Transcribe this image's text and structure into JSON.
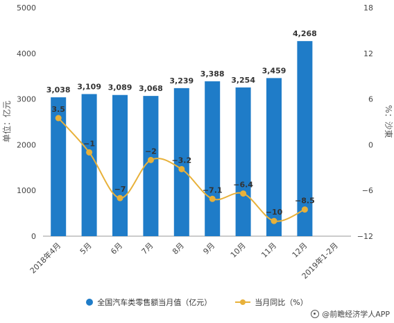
{
  "chart_data": {
    "type": "bar+line",
    "categories": [
      "2018年4月",
      "5月",
      "6月",
      "7月",
      "8月",
      "9月",
      "10月",
      "11月",
      "12月",
      "2019年1-2月"
    ],
    "series": [
      {
        "name": "全国汽车类零售额当月值（亿元）",
        "type": "bar",
        "axis": "left",
        "values": [
          3038,
          3109,
          3089,
          3068,
          3239,
          3388,
          3254,
          3459,
          4268,
          null
        ],
        "labels": [
          "3,038",
          "3,109",
          "3,089",
          "3,068",
          "3,239",
          "3,388",
          "3,254",
          "3,459",
          "4,268",
          ""
        ],
        "color": "#1f7cc8"
      },
      {
        "name": "当月同比（%）",
        "type": "line",
        "axis": "right",
        "values": [
          3.5,
          -1,
          -7,
          -2,
          -3.2,
          -7.1,
          -6.4,
          -10,
          -8.5,
          null
        ],
        "labels": [
          "3.5",
          "−1",
          "−7",
          "−2",
          "−3.2",
          "−7.1",
          "−6.4",
          "−10",
          "−8.5",
          ""
        ],
        "color": "#e8b13a"
      }
    ],
    "y_left": {
      "label": "单位：亿元",
      "ticks": [
        0,
        1000,
        2000,
        3000,
        4000,
        5000
      ],
      "lim": [
        0,
        5000
      ]
    },
    "y_right": {
      "label": "%：沙東",
      "ticks": [
        "−12",
        "−6",
        "0",
        "6",
        "12",
        "18"
      ],
      "tick_values": [
        -12,
        -6,
        0,
        6,
        12,
        18
      ],
      "lim": [
        -12,
        18
      ]
    },
    "legend_position": "bottom",
    "grid": false
  },
  "source": "@前瞻经济学人APP"
}
